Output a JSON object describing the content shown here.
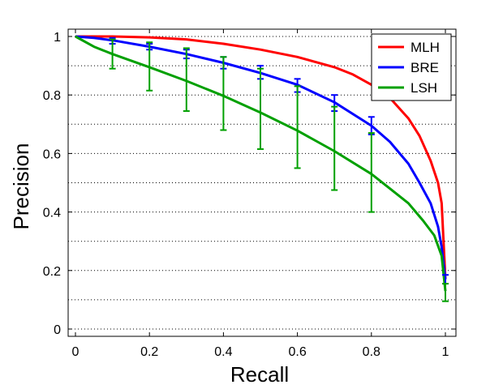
{
  "chart_data": {
    "type": "line",
    "title": "",
    "xlabel": "Recall",
    "ylabel": "Precision",
    "xlim": [
      0,
      1
    ],
    "ylim": [
      0,
      1
    ],
    "xticks": [
      "0",
      "0.2",
      "0.4",
      "0.6",
      "0.8",
      "1"
    ],
    "yticks": [
      "0",
      "0.2",
      "0.4",
      "0.6",
      "0.8",
      "1"
    ],
    "grid": "horizontal dotted",
    "legend_position": "top-right",
    "series": [
      {
        "name": "MLH",
        "color": "#ff0000",
        "x": [
          0,
          0.05,
          0.1,
          0.2,
          0.3,
          0.4,
          0.5,
          0.6,
          0.7,
          0.75,
          0.8,
          0.85,
          0.9,
          0.93,
          0.96,
          0.98,
          0.99,
          1.0
        ],
        "y": [
          1.0,
          1.0,
          1.0,
          0.997,
          0.99,
          0.975,
          0.955,
          0.93,
          0.895,
          0.87,
          0.835,
          0.79,
          0.72,
          0.66,
          0.575,
          0.5,
          0.43,
          0.17
        ]
      },
      {
        "name": "BRE",
        "color": "#0000ff",
        "x": [
          0,
          0.05,
          0.1,
          0.2,
          0.3,
          0.4,
          0.5,
          0.6,
          0.7,
          0.8,
          0.85,
          0.9,
          0.93,
          0.96,
          0.98,
          0.99,
          1.0
        ],
        "y": [
          1.0,
          0.995,
          0.987,
          0.965,
          0.94,
          0.91,
          0.875,
          0.835,
          0.775,
          0.695,
          0.64,
          0.565,
          0.5,
          0.43,
          0.35,
          0.28,
          0.17
        ],
        "error_bars": {
          "x": [
            0.1,
            0.2,
            0.3,
            0.4,
            0.5,
            0.6,
            0.7,
            0.8,
            1.0
          ],
          "lower": [
            0.975,
            0.955,
            0.925,
            0.89,
            0.855,
            0.81,
            0.745,
            0.665,
            0.155
          ],
          "upper": [
            0.995,
            0.975,
            0.955,
            0.93,
            0.9,
            0.855,
            0.8,
            0.725,
            0.185
          ]
        }
      },
      {
        "name": "LSH",
        "color": "#00a000",
        "x": [
          0,
          0.05,
          0.1,
          0.2,
          0.3,
          0.4,
          0.5,
          0.6,
          0.7,
          0.8,
          0.85,
          0.9,
          0.94,
          0.97,
          0.99,
          1.0
        ],
        "y": [
          1.0,
          0.965,
          0.94,
          0.895,
          0.848,
          0.797,
          0.74,
          0.678,
          0.608,
          0.53,
          0.48,
          0.43,
          0.37,
          0.32,
          0.25,
          0.13
        ],
        "error_bars": {
          "x": [
            0.1,
            0.2,
            0.3,
            0.4,
            0.5,
            0.6,
            0.7,
            0.8,
            1.0
          ],
          "lower": [
            0.89,
            0.815,
            0.745,
            0.68,
            0.615,
            0.55,
            0.475,
            0.4,
            0.095
          ],
          "upper": [
            0.99,
            0.98,
            0.96,
            0.93,
            0.89,
            0.83,
            0.76,
            0.67,
            0.155
          ]
        }
      }
    ]
  }
}
